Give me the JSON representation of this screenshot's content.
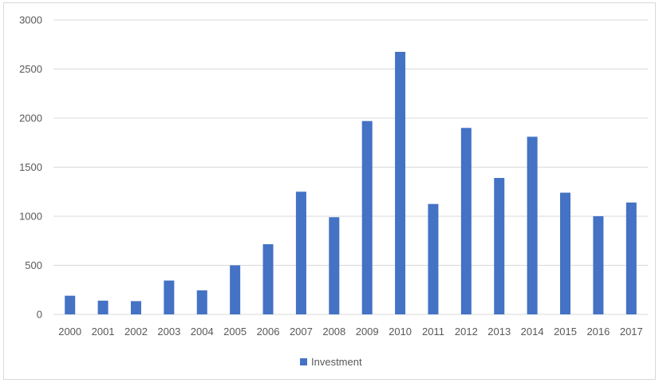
{
  "chart_data": {
    "type": "bar",
    "categories": [
      "2000",
      "2001",
      "2002",
      "2003",
      "2004",
      "2005",
      "2006",
      "2007",
      "2008",
      "2009",
      "2010",
      "2011",
      "2012",
      "2013",
      "2014",
      "2015",
      "2016",
      "2017"
    ],
    "series": [
      {
        "name": "Investment",
        "color": "#4472c4",
        "values": [
          190,
          140,
          135,
          345,
          245,
          500,
          715,
          1250,
          990,
          1970,
          2675,
          1125,
          1900,
          1390,
          1810,
          1240,
          1000,
          1140
        ]
      }
    ],
    "ylim": [
      0,
      3000
    ],
    "yticks": [
      0,
      500,
      1000,
      1500,
      2000,
      2500,
      3000
    ],
    "grid": true,
    "legend": "bottom",
    "gridColor": "#d9d9d9"
  }
}
